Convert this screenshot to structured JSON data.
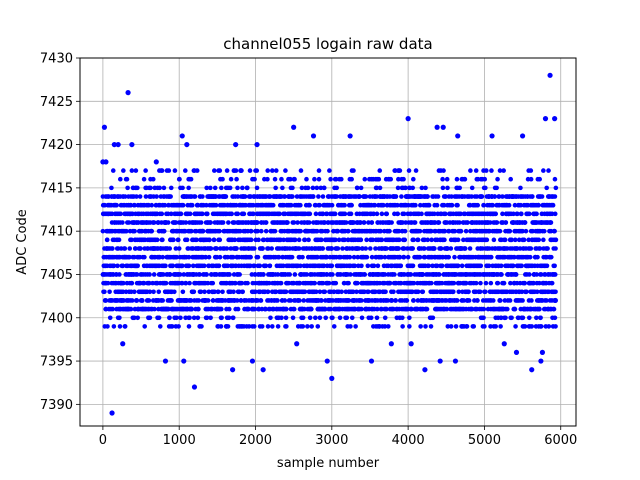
{
  "chart_data": {
    "type": "scatter",
    "title": "channel055 logain raw data",
    "xlabel": "sample number",
    "ylabel": "ADC Code",
    "xlim": [
      -300,
      6200
    ],
    "ylim": [
      7387.5,
      7430
    ],
    "xticks": [
      0,
      1000,
      2000,
      3000,
      4000,
      5000,
      6000
    ],
    "yticks": [
      7390,
      7395,
      7400,
      7405,
      7410,
      7415,
      7420,
      7425,
      7430
    ],
    "xtick_labels": [
      "0",
      "1000",
      "2000",
      "3000",
      "4000",
      "5000",
      "6000"
    ],
    "ytick_labels": [
      "7390",
      "7395",
      "7400",
      "7405",
      "7410",
      "7415",
      "7420",
      "7425",
      "7430"
    ],
    "grid": true,
    "marker_color": "#0000ff",
    "n_samples": 5940,
    "core_band": [
      7401,
      7414
    ],
    "series": [
      {
        "x": [
          0,
          20,
          40,
          120,
          150,
          200,
          260,
          330,
          380,
          700,
          820,
          1040,
          1060,
          1100,
          1200,
          1700,
          1740,
          1960,
          2020,
          2100,
          2500,
          2540,
          2760,
          2940,
          3000,
          3240,
          3520,
          3780,
          4000,
          4040,
          4220,
          4380,
          4420,
          4460,
          4620,
          4650,
          5100,
          5260,
          5420,
          5500,
          5620,
          5740,
          5760,
          5800,
          5860,
          5920,
          5930
        ],
        "y": [
          7418,
          7422,
          7418,
          7389,
          7420,
          7420,
          7397,
          7426,
          7420,
          7418,
          7395,
          7421,
          7395,
          7420,
          7392,
          7394,
          7420,
          7395,
          7420,
          7394,
          7422,
          7397,
          7421,
          7395,
          7393,
          7421,
          7395,
          7397,
          7423,
          7397,
          7394,
          7422,
          7395,
          7422,
          7395,
          7421,
          7421,
          7397,
          7396,
          7421,
          7394,
          7395,
          7396,
          7423,
          7428,
          7423,
          7402
        ]
      }
    ]
  }
}
